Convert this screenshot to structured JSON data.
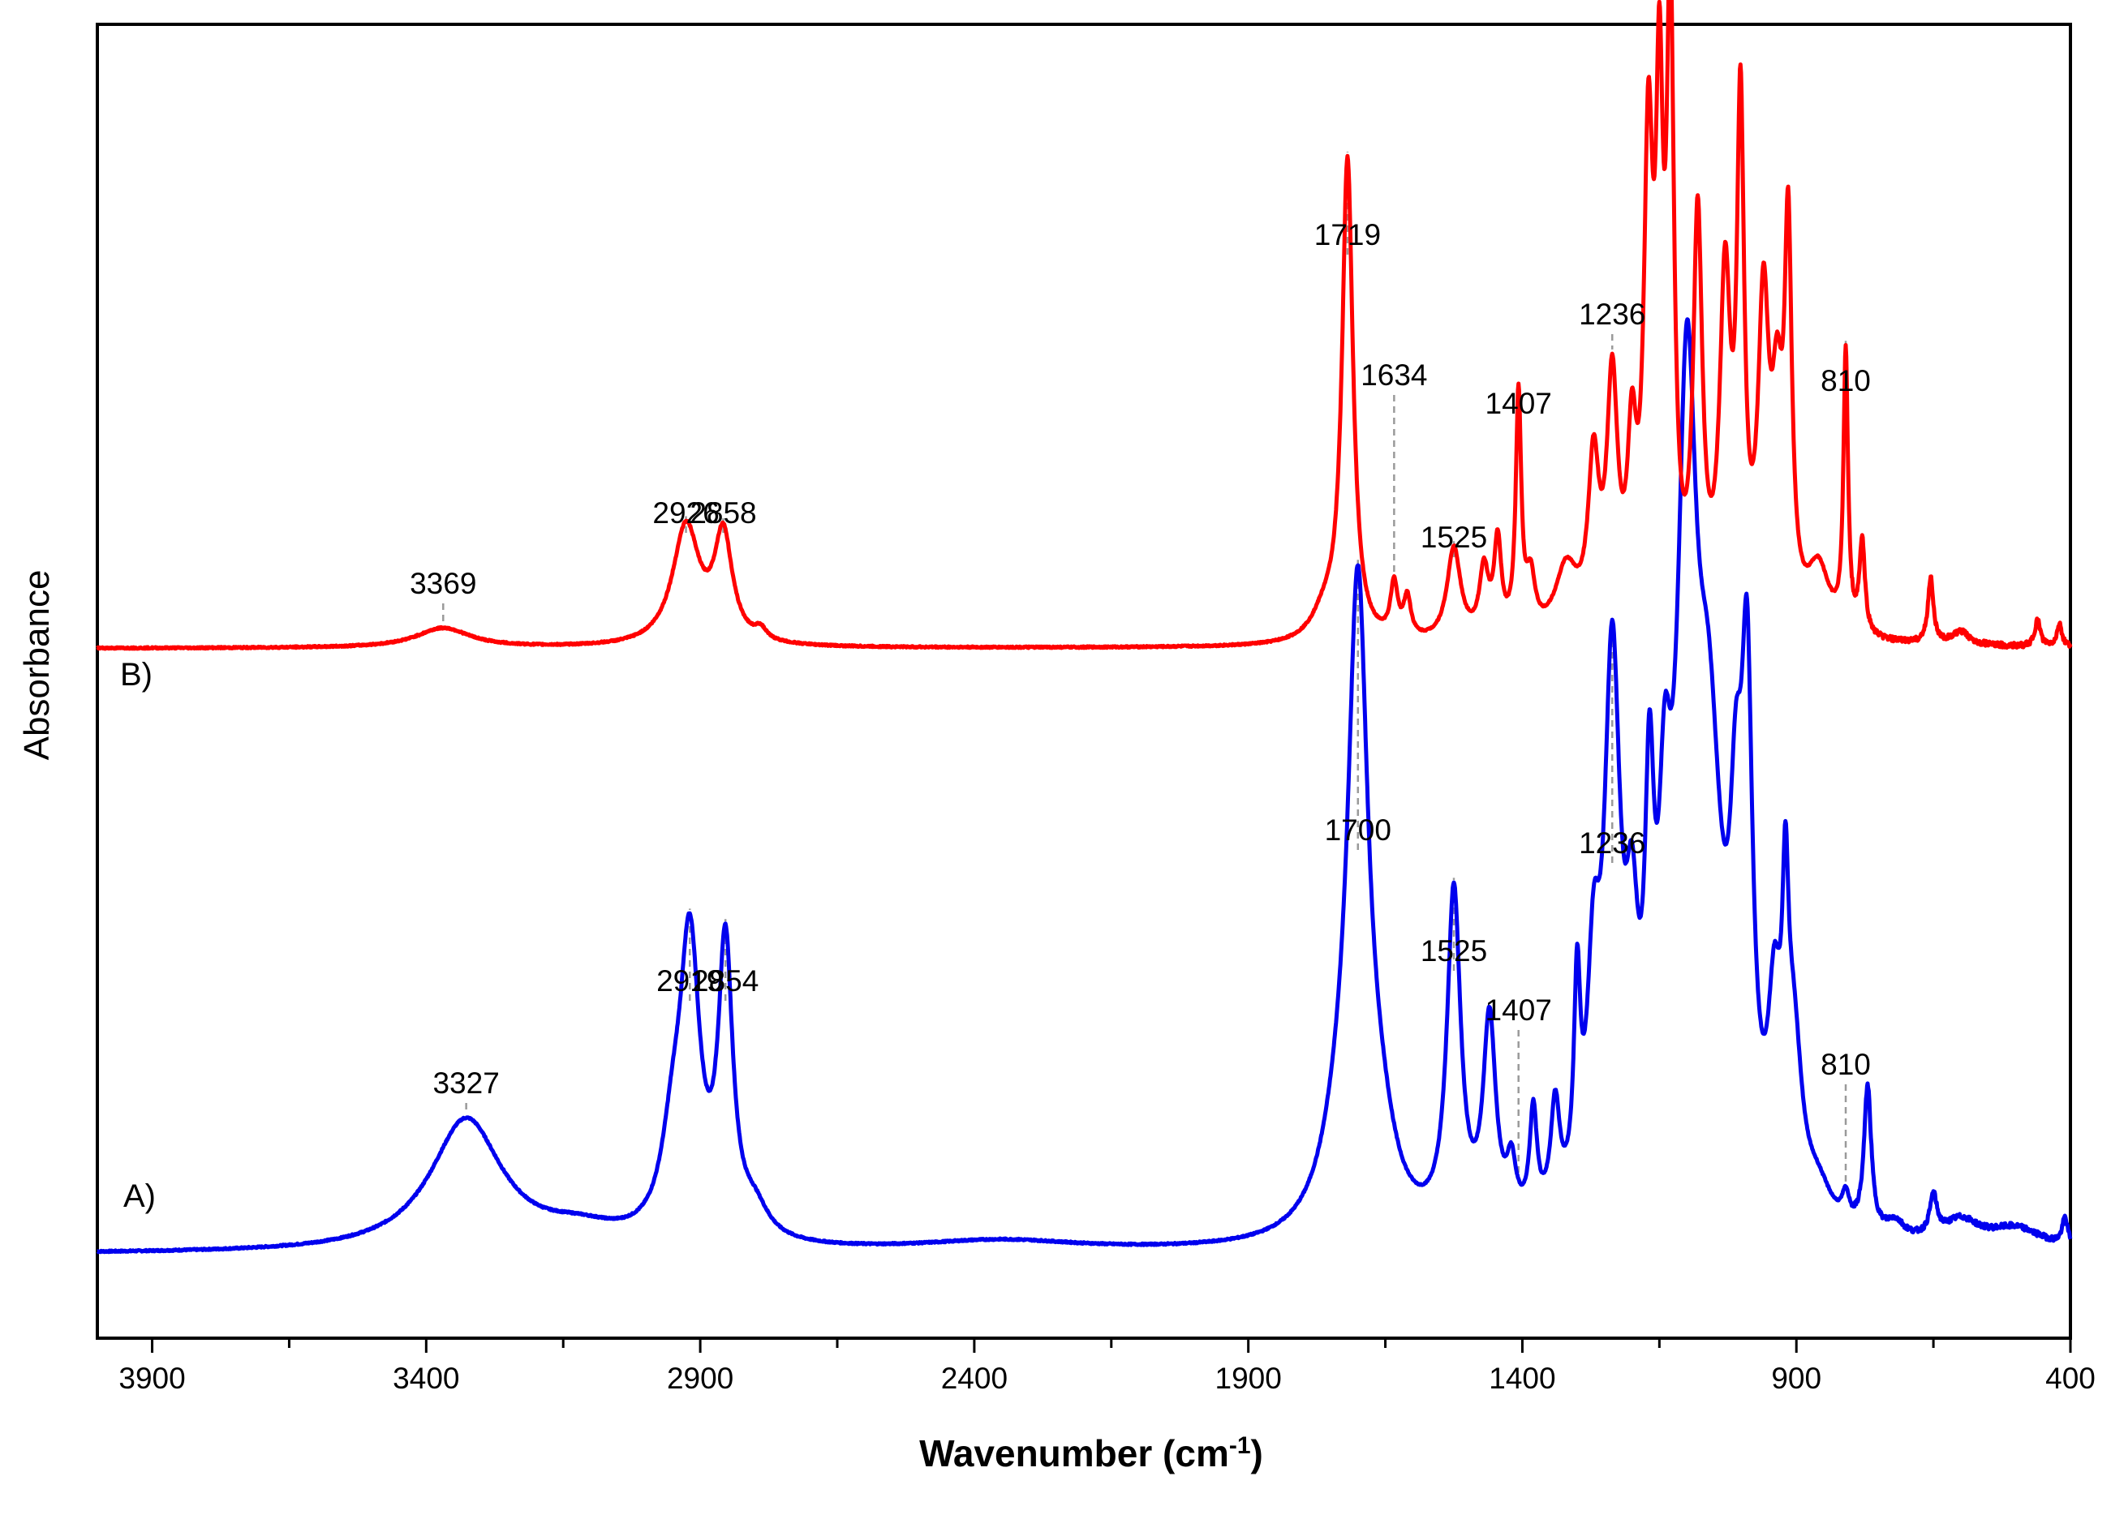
{
  "chart_data": {
    "type": "line",
    "title": "",
    "xlabel_main": "Wavenumber (cm",
    "xlabel_sup": "-1",
    "xlabel_close": ")",
    "ylabel": "Absorbance",
    "xlim": [
      4000,
      400
    ],
    "ylim": [
      0,
      1
    ],
    "x_ticks": [
      3900,
      3400,
      2900,
      2400,
      1900,
      1400,
      900,
      400
    ],
    "x_minor_ticks": [
      3650,
      3150,
      2650,
      2150,
      1650,
      1150,
      650
    ],
    "x_tick_labels": [
      "3900",
      "3400",
      "2900",
      "2400",
      "1900",
      "1400",
      "900",
      "400"
    ],
    "grid": false,
    "series": [
      {
        "name": "A)",
        "color": "#0000ee",
        "baseline": 0.064,
        "peaks": [
          {
            "x": 3327,
            "h": 0.1,
            "w": 80
          },
          {
            "x": 3120,
            "h": 0.012,
            "w": 90
          },
          {
            "x": 2950,
            "h": 0.06,
            "w": 25
          },
          {
            "x": 2919,
            "h": 0.215,
            "w": 22
          },
          {
            "x": 2854,
            "h": 0.215,
            "w": 16
          },
          {
            "x": 2800,
            "h": 0.02,
            "w": 30
          },
          {
            "x": 2350,
            "h": 0.008,
            "w": 180
          },
          {
            "x": 1730,
            "h": 0.06,
            "w": 45
          },
          {
            "x": 1700,
            "h": 0.455,
            "w": 22
          },
          {
            "x": 1660,
            "h": 0.05,
            "w": 35
          },
          {
            "x": 1525,
            "h": 0.255,
            "w": 15
          },
          {
            "x": 1460,
            "h": 0.155,
            "w": 14
          },
          {
            "x": 1420,
            "h": 0.04,
            "w": 10
          },
          {
            "x": 1380,
            "h": 0.08,
            "w": 8
          },
          {
            "x": 1340,
            "h": 0.08,
            "w": 10
          },
          {
            "x": 1300,
            "h": 0.15,
            "w": 7
          },
          {
            "x": 1270,
            "h": 0.15,
            "w": 14
          },
          {
            "x": 1236,
            "h": 0.4,
            "w": 18
          },
          {
            "x": 1200,
            "h": 0.15,
            "w": 14
          },
          {
            "x": 1168,
            "h": 0.24,
            "w": 10
          },
          {
            "x": 1140,
            "h": 0.2,
            "w": 14
          },
          {
            "x": 1100,
            "h": 0.55,
            "w": 22
          },
          {
            "x": 1060,
            "h": 0.3,
            "w": 30
          },
          {
            "x": 1010,
            "h": 0.2,
            "w": 14
          },
          {
            "x": 990,
            "h": 0.34,
            "w": 12
          },
          {
            "x": 940,
            "h": 0.13,
            "w": 14
          },
          {
            "x": 905,
            "h": 0.12,
            "w": 18
          },
          {
            "x": 920,
            "h": 0.17,
            "w": 7
          },
          {
            "x": 860,
            "h": 0.025,
            "w": 30
          },
          {
            "x": 810,
            "h": 0.02,
            "w": 8
          },
          {
            "x": 770,
            "h": 0.11,
            "w": 8
          },
          {
            "x": 720,
            "h": 0.012,
            "w": 20
          },
          {
            "x": 650,
            "h": 0.03,
            "w": 8
          },
          {
            "x": 600,
            "h": 0.018,
            "w": 40
          },
          {
            "x": 500,
            "h": 0.015,
            "w": 60
          },
          {
            "x": 410,
            "h": 0.02,
            "w": 6
          }
        ],
        "annotations": [
          {
            "x": 3327,
            "label": "3327"
          },
          {
            "x": 2919,
            "label": "2919"
          },
          {
            "x": 2854,
            "label": "2854"
          },
          {
            "x": 1700,
            "label": "1700"
          },
          {
            "x": 1525,
            "label": "1525"
          },
          {
            "x": 1407,
            "label": "1407"
          },
          {
            "x": 1236,
            "label": "1236"
          },
          {
            "x": 810,
            "label": "810"
          }
        ]
      },
      {
        "name": "B)",
        "color": "#ff0000",
        "baseline": 0.525,
        "peaks": [
          {
            "x": 3369,
            "h": 0.015,
            "w": 60
          },
          {
            "x": 2926,
            "h": 0.09,
            "w": 30
          },
          {
            "x": 2858,
            "h": 0.08,
            "w": 20
          },
          {
            "x": 2790,
            "h": 0.008,
            "w": 12
          },
          {
            "x": 1760,
            "h": 0.02,
            "w": 30
          },
          {
            "x": 1719,
            "h": 0.365,
            "w": 12
          },
          {
            "x": 1634,
            "h": 0.04,
            "w": 8
          },
          {
            "x": 1610,
            "h": 0.03,
            "w": 8
          },
          {
            "x": 1525,
            "h": 0.07,
            "w": 15
          },
          {
            "x": 1470,
            "h": 0.05,
            "w": 10
          },
          {
            "x": 1445,
            "h": 0.07,
            "w": 8
          },
          {
            "x": 1407,
            "h": 0.18,
            "w": 6
          },
          {
            "x": 1385,
            "h": 0.04,
            "w": 10
          },
          {
            "x": 1320,
            "h": 0.05,
            "w": 25
          },
          {
            "x": 1270,
            "h": 0.12,
            "w": 12
          },
          {
            "x": 1236,
            "h": 0.18,
            "w": 12
          },
          {
            "x": 1200,
            "h": 0.12,
            "w": 10
          },
          {
            "x": 1170,
            "h": 0.34,
            "w": 10
          },
          {
            "x": 1150,
            "h": 0.34,
            "w": 8
          },
          {
            "x": 1130,
            "h": 0.45,
            "w": 8
          },
          {
            "x": 1080,
            "h": 0.3,
            "w": 10
          },
          {
            "x": 1030,
            "h": 0.25,
            "w": 12
          },
          {
            "x": 1002,
            "h": 0.37,
            "w": 8
          },
          {
            "x": 960,
            "h": 0.23,
            "w": 12
          },
          {
            "x": 935,
            "h": 0.14,
            "w": 12
          },
          {
            "x": 915,
            "h": 0.28,
            "w": 8
          },
          {
            "x": 860,
            "h": 0.05,
            "w": 25
          },
          {
            "x": 810,
            "h": 0.21,
            "w": 5
          },
          {
            "x": 780,
            "h": 0.07,
            "w": 6
          },
          {
            "x": 655,
            "h": 0.05,
            "w": 6
          },
          {
            "x": 600,
            "h": 0.01,
            "w": 20
          },
          {
            "x": 460,
            "h": 0.02,
            "w": 6
          },
          {
            "x": 420,
            "h": 0.018,
            "w": 5
          }
        ],
        "annotations": [
          {
            "x": 3369,
            "label": "3369"
          },
          {
            "x": 2926,
            "label": "2926"
          },
          {
            "x": 2858,
            "label": "2858"
          },
          {
            "x": 1719,
            "label": "1719"
          },
          {
            "x": 1634,
            "label": "1634"
          },
          {
            "x": 1525,
            "label": "1525"
          },
          {
            "x": 1407,
            "label": "1407"
          },
          {
            "x": 1236,
            "label": "1236"
          },
          {
            "x": 810,
            "label": "810"
          }
        ]
      }
    ]
  }
}
